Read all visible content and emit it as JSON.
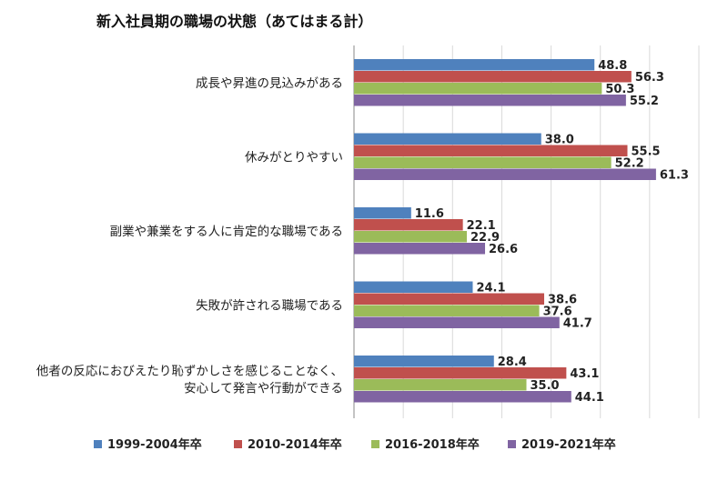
{
  "chart_data": {
    "type": "bar",
    "orientation": "horizontal",
    "title": "新入社員期の職場の状態（あてはまる計）",
    "categories": [
      "成長や昇進の見込みがある",
      "休みがとりやすい",
      "副業や兼業をする人に肯定的な職場である",
      "失敗が許される職場である",
      "他者の反応におびえたり恥ずかしさを感じることなく、\n安心して発言や行動ができる"
    ],
    "series": [
      {
        "name": "1999-2004年卒",
        "color": "#4f81bd",
        "values": [
          48.8,
          38.0,
          11.6,
          24.1,
          28.4
        ]
      },
      {
        "name": "2010-2014年卒",
        "color": "#c0504d",
        "values": [
          56.3,
          55.5,
          22.1,
          38.6,
          43.1
        ]
      },
      {
        "name": "2016-2018年卒",
        "color": "#9bbb59",
        "values": [
          50.3,
          52.2,
          22.9,
          37.6,
          35.0
        ]
      },
      {
        "name": "2019-2021年卒",
        "color": "#8064a2",
        "values": [
          55.2,
          61.3,
          26.6,
          41.7,
          44.1
        ]
      }
    ],
    "xlim": [
      0,
      70
    ],
    "grid": true,
    "legend_position": "bottom"
  }
}
